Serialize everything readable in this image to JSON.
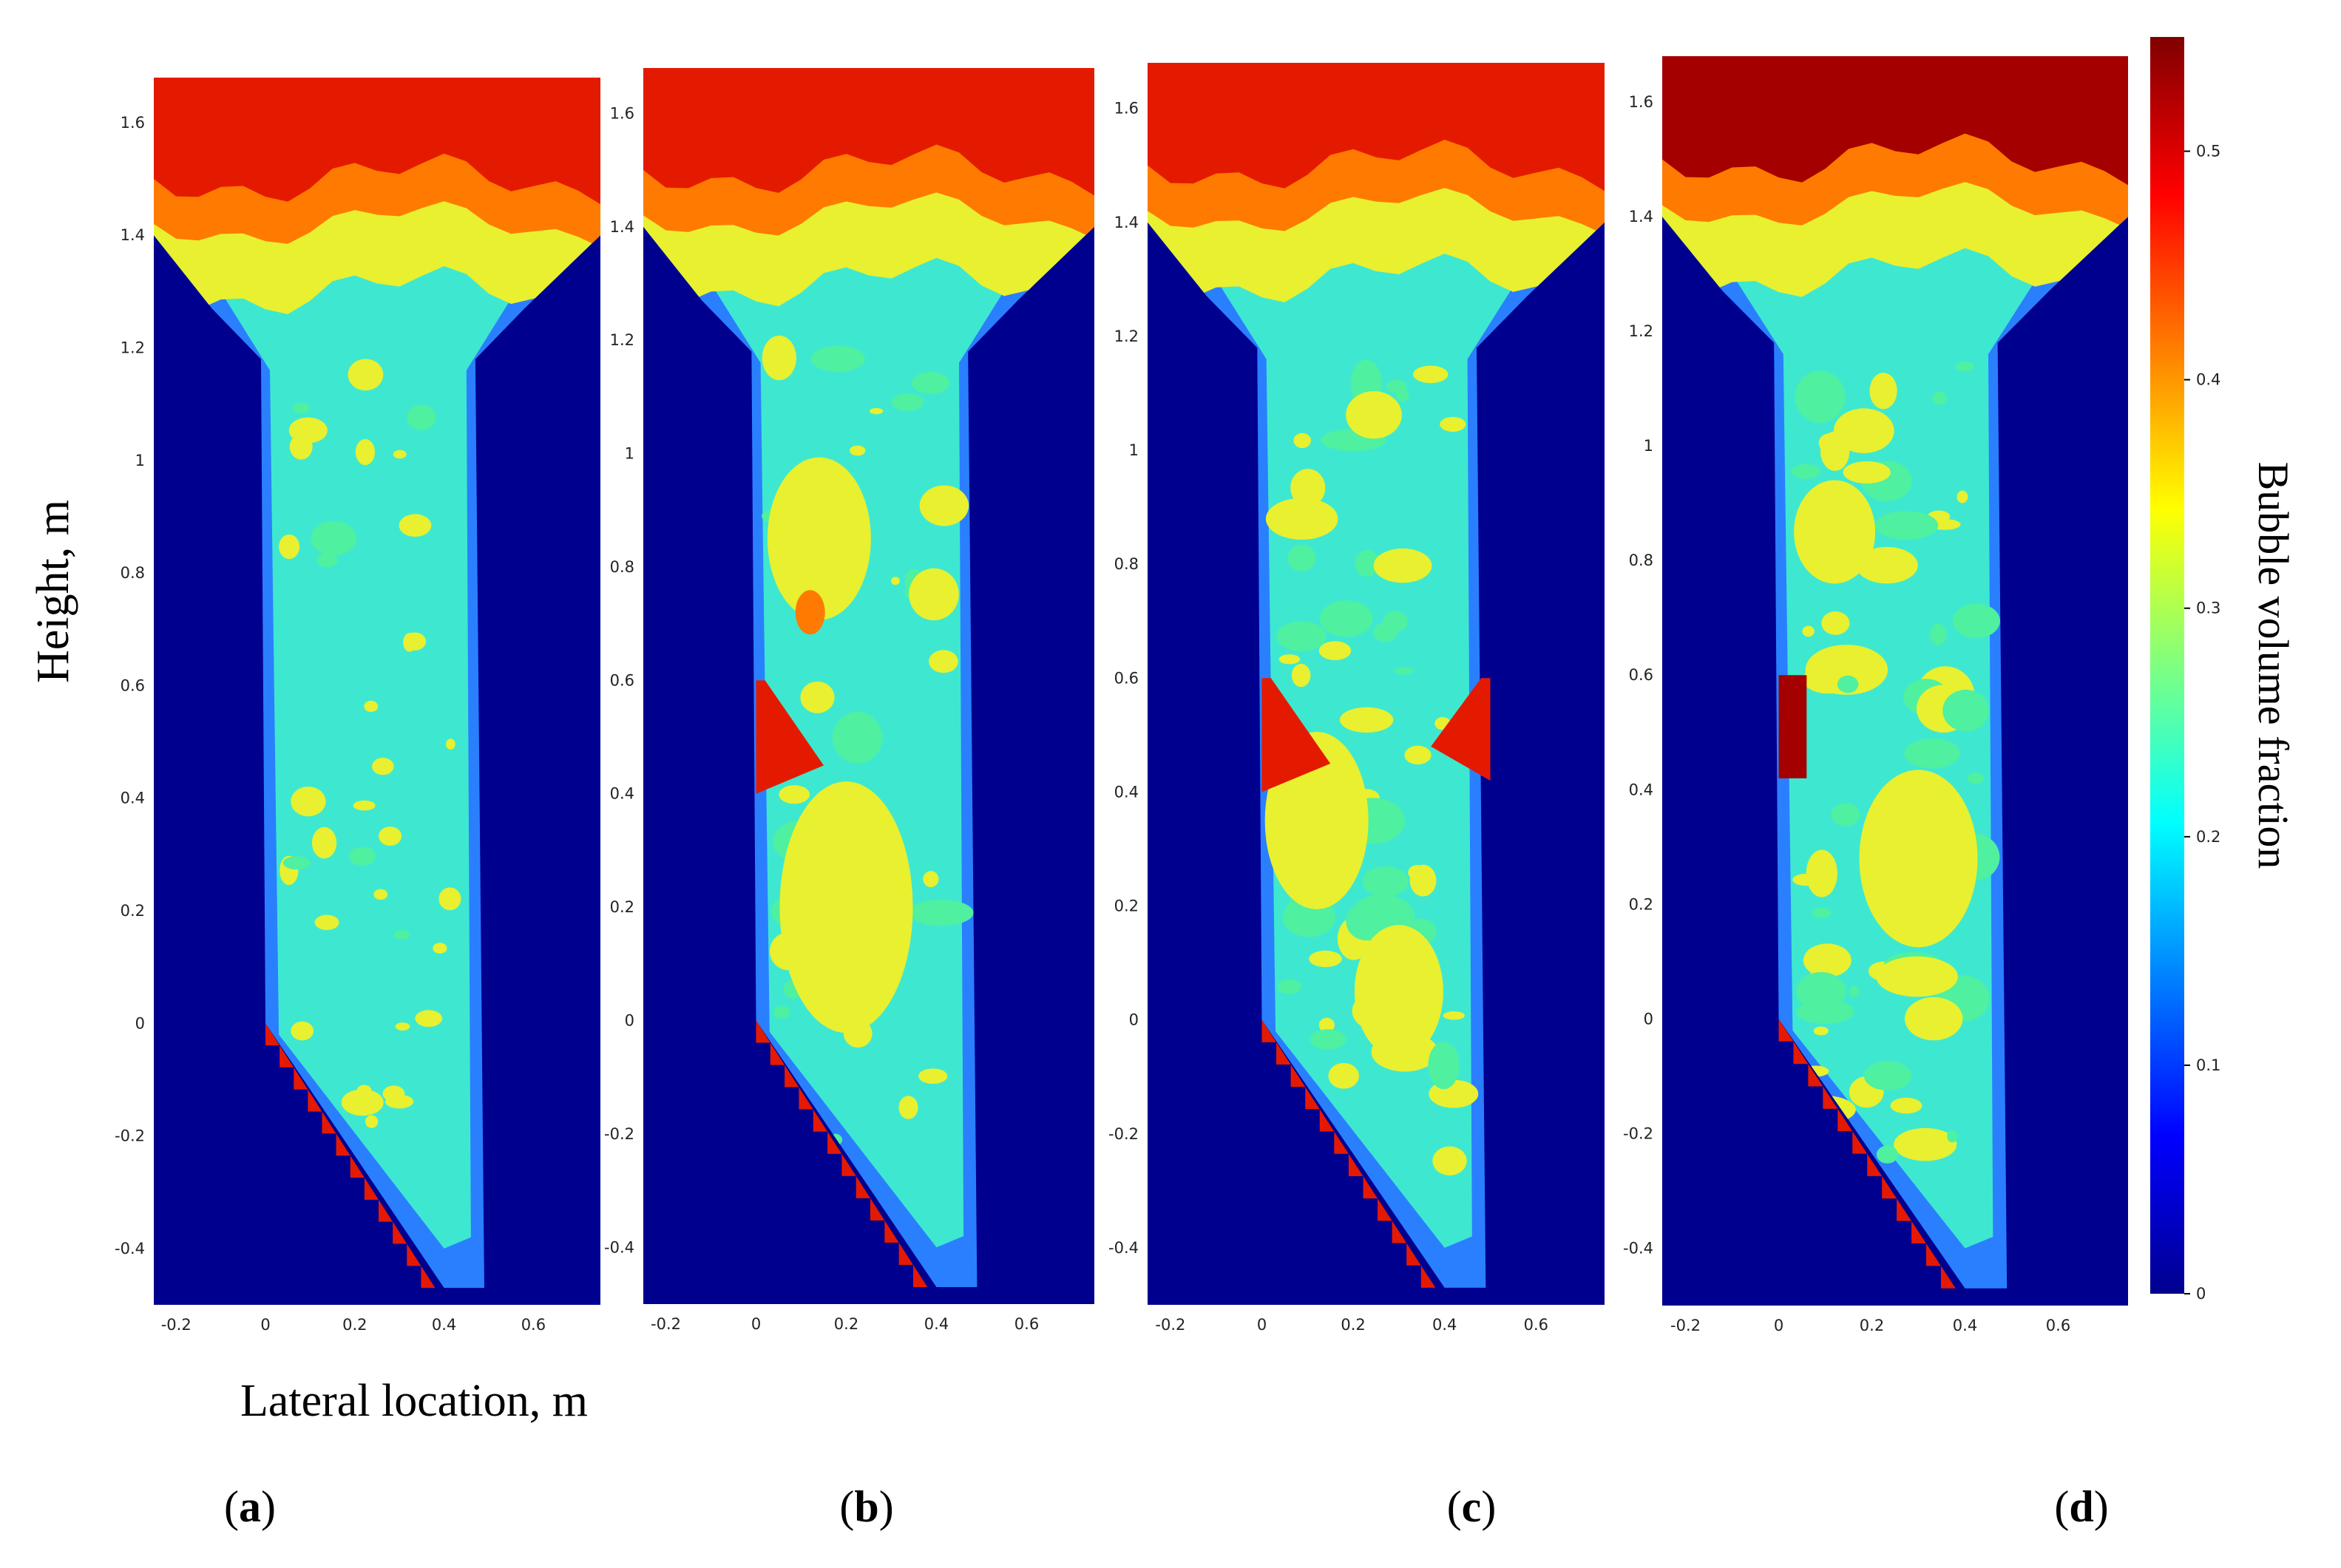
{
  "chart_data": {
    "type": "heatmap",
    "ylabel": "Height, m",
    "xlabel": "Lateral location, m",
    "xticks": [
      "-0.2",
      "0",
      "0.2",
      "0.4",
      "0.6"
    ],
    "yticks": [
      "-0.4",
      "-0.2",
      "0",
      "0.2",
      "0.4",
      "0.6",
      "0.8",
      "1",
      "1.2",
      "1.4",
      "1.6"
    ],
    "xlim": [
      -0.25,
      0.75
    ],
    "ylim": [
      -0.5,
      1.68
    ],
    "colorbar": {
      "label": "Bubble volume fraction",
      "range": [
        0,
        0.55
      ],
      "ticks": [
        "0",
        "0.1",
        "0.2",
        "0.3",
        "0.4",
        "0.5"
      ],
      "colormap": "jet"
    },
    "panels": [
      {
        "id": "a",
        "label": "a",
        "baffle": "none",
        "dominant_fraction": 0.25
      },
      {
        "id": "b",
        "label": "b",
        "baffle": "left",
        "baffle_top_height": 0.6,
        "dominant_fraction": 0.32
      },
      {
        "id": "c",
        "label": "c",
        "baffle": "both",
        "baffle_top_height": 0.6,
        "dominant_fraction": 0.3
      },
      {
        "id": "d",
        "label": "d",
        "baffle": "left-vertical",
        "baffle_top_height": 0.6,
        "dominant_fraction": 0.27
      }
    ]
  },
  "colors": {
    "background": "#00008f",
    "blue": "#2a7fff",
    "cyan": "#3ee8d0",
    "green": "#4ff0a0",
    "yellow": "#e8f030",
    "orange": "#ff7a00",
    "red": "#e41a00",
    "darkred": "#a40000"
  }
}
